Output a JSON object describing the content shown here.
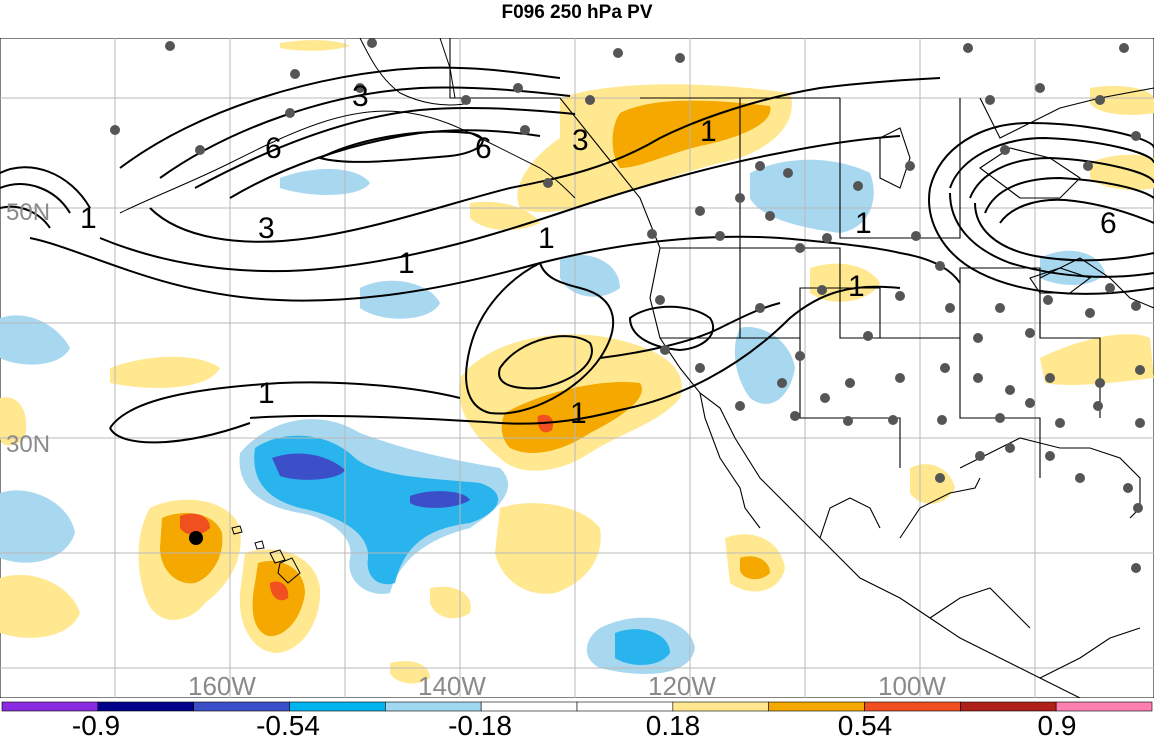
{
  "title": "F096 250 hPa PV",
  "map": {
    "longitude_labels": [
      "160W",
      "140W",
      "120W",
      "100W"
    ],
    "latitude_labels": [
      "50N",
      "30N"
    ],
    "contour_labels": [
      "3",
      "6",
      "6",
      "3",
      "1",
      "1",
      "1",
      "3",
      "6",
      "1",
      "1",
      "1",
      "1",
      "1"
    ],
    "marker": "station-dot"
  },
  "colorbar": {
    "tick_labels": [
      "-0.9",
      "-0.54",
      "-0.18",
      "0.18",
      "0.54",
      "0.9"
    ],
    "colors": [
      "#8a2be2",
      "#00008b",
      "#3b50c8",
      "#00b4f0",
      "#a0d8f0",
      "#ffffff",
      "#ffffff",
      "#ffe890",
      "#f4a800",
      "#f05020",
      "#b0201a",
      "#ff80b0"
    ]
  }
}
